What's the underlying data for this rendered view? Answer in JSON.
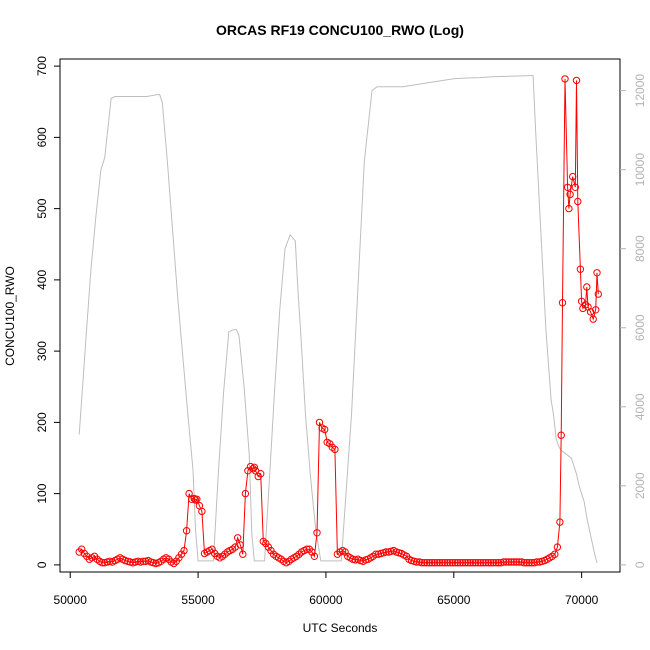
{
  "chart_data": {
    "type": "line",
    "title": "ORCAS RF19 CONCU100_RWO (Log)",
    "xlabel": "UTC Seconds",
    "ylabel": "CONCU100_RWO",
    "y2label": "",
    "xlim": [
      49600,
      71500
    ],
    "ylim": [
      -10,
      710
    ],
    "y2lim": [
      -180,
      12800
    ],
    "x_ticks": [
      50000,
      55000,
      60000,
      65000,
      70000
    ],
    "y_ticks": [
      0,
      100,
      200,
      300,
      400,
      500,
      600,
      700
    ],
    "y2_ticks": [
      0,
      2000,
      4000,
      6000,
      8000,
      10000,
      12000
    ],
    "grid": false,
    "colors": {
      "primary": "#ff0000",
      "secondary": "#bebebe",
      "axis": "#000000",
      "right_axis": "#b3b3b3"
    },
    "series": [
      {
        "axis": "left",
        "style": "line+circle-markers",
        "color": "#ff0000",
        "x": [
          50350,
          50450,
          50550,
          50650,
          50750,
          50850,
          50950,
          51050,
          51150,
          51250,
          51350,
          51450,
          51550,
          51650,
          51750,
          51850,
          51950,
          52050,
          52150,
          52250,
          52350,
          52450,
          52550,
          52650,
          52750,
          52850,
          52950,
          53050,
          53150,
          53250,
          53350,
          53450,
          53550,
          53650,
          53750,
          53850,
          53950,
          54050,
          54150,
          54250,
          54350,
          54450,
          54550,
          54650,
          54750,
          54850,
          54900,
          54950,
          55050,
          55150,
          55250,
          55350,
          55450,
          55550,
          55650,
          55750,
          55850,
          55950,
          56050,
          56150,
          56250,
          56350,
          56450,
          56550,
          56650,
          56750,
          56850,
          56950,
          57050,
          57150,
          57200,
          57250,
          57350,
          57450,
          57550,
          57650,
          57750,
          57850,
          57950,
          58050,
          58150,
          58250,
          58350,
          58450,
          58550,
          58650,
          58750,
          58850,
          58950,
          59050,
          59150,
          59250,
          59350,
          59450,
          59550,
          59650,
          59750,
          59850,
          59950,
          60050,
          60150,
          60250,
          60350,
          60450,
          60550,
          60650,
          60750,
          60850,
          60950,
          61050,
          61150,
          61250,
          61350,
          61450,
          61550,
          61650,
          61750,
          61850,
          61950,
          62050,
          62150,
          62250,
          62350,
          62450,
          62550,
          62650,
          62750,
          62850,
          62950,
          63050,
          63150,
          63250,
          63350,
          63450,
          63550,
          63650,
          63750,
          63850,
          63950,
          64050,
          64150,
          64250,
          64350,
          64450,
          64550,
          64650,
          64750,
          64850,
          64950,
          65050,
          65150,
          65250,
          65350,
          65450,
          65550,
          65650,
          65750,
          65850,
          65950,
          66050,
          66150,
          66250,
          66350,
          66450,
          66550,
          66650,
          66750,
          66850,
          66950,
          67050,
          67150,
          67250,
          67350,
          67450,
          67550,
          67650,
          67750,
          67850,
          67950,
          68050,
          68150,
          68250,
          68350,
          68450,
          68550,
          68650,
          68750,
          68850,
          68950,
          69050,
          69150,
          69200,
          69250,
          69350,
          69450,
          69500,
          69550,
          69650,
          69750,
          69800,
          69850,
          69950,
          70000,
          70050,
          70150,
          70200,
          70250,
          70350,
          70450,
          70550,
          70600,
          70650
        ],
        "y": [
          18,
          22,
          16,
          12,
          8,
          10,
          12,
          8,
          5,
          3,
          3,
          4,
          5,
          4,
          6,
          8,
          10,
          8,
          6,
          5,
          4,
          3,
          4,
          5,
          4,
          5,
          5,
          6,
          4,
          3,
          2,
          3,
          5,
          8,
          10,
          8,
          4,
          2,
          5,
          10,
          15,
          20,
          48,
          100,
          92,
          93,
          91,
          92,
          83,
          75,
          16,
          18,
          20,
          22,
          16,
          12,
          10,
          12,
          15,
          18,
          20,
          22,
          25,
          38,
          28,
          15,
          100,
          132,
          138,
          135,
          137,
          132,
          124,
          128,
          33,
          30,
          25,
          20,
          15,
          12,
          10,
          8,
          5,
          3,
          5,
          8,
          10,
          12,
          15,
          18,
          20,
          22,
          22,
          18,
          12,
          45,
          200,
          192,
          190,
          172,
          170,
          165,
          162,
          15,
          18,
          20,
          18,
          12,
          10,
          8,
          7,
          8,
          6,
          5,
          7,
          8,
          10,
          12,
          15,
          15,
          16,
          17,
          18,
          18,
          19,
          20,
          18,
          17,
          16,
          14,
          12,
          8,
          6,
          5,
          4,
          4,
          3,
          3,
          3,
          3,
          3,
          3,
          3,
          3,
          3,
          3,
          3,
          3,
          3,
          3,
          3,
          3,
          3,
          3,
          3,
          3,
          3,
          3,
          3,
          3,
          3,
          3,
          3,
          3,
          3,
          3,
          3,
          3,
          4,
          4,
          4,
          4,
          4,
          4,
          4,
          4,
          3,
          3,
          3,
          3,
          3,
          4,
          4,
          5,
          6,
          8,
          10,
          12,
          15,
          25,
          60,
          182,
          368,
          682,
          530,
          500,
          520,
          545,
          530,
          680,
          510,
          415,
          370,
          360,
          365,
          390,
          362,
          355,
          345,
          358,
          410,
          380
        ]
      },
      {
        "axis": "right",
        "style": "line",
        "color": "#bebebe",
        "x": [
          50350,
          50600,
          50800,
          51000,
          51200,
          51350,
          51500,
          51600,
          51750,
          52000,
          52500,
          53000,
          53400,
          53500,
          53600,
          53800,
          54000,
          54200,
          54400,
          54600,
          54800,
          54900,
          55000,
          55200,
          55400,
          55600,
          55800,
          56000,
          56200,
          56400,
          56500,
          56600,
          56800,
          57000,
          57100,
          57200,
          57400,
          57600,
          57800,
          58000,
          58200,
          58400,
          58600,
          58800,
          58900,
          59000,
          59200,
          59400,
          59600,
          59800,
          59900,
          60000,
          60200,
          60400,
          60600,
          61000,
          61500,
          61800,
          62000,
          62500,
          63000,
          63500,
          64000,
          64500,
          65000,
          65500,
          66000,
          66500,
          67000,
          67500,
          68000,
          68100,
          68200,
          68400,
          68600,
          68800,
          68900,
          69000,
          69100,
          69200,
          69300,
          69400,
          69600,
          69800,
          69900,
          70000,
          70100,
          70200,
          70300,
          70400,
          70500,
          70600
        ],
        "y": [
          3300,
          5600,
          7400,
          8800,
          10000,
          10300,
          11200,
          11800,
          11850,
          11850,
          11850,
          11850,
          11900,
          11900,
          11700,
          10200,
          8500,
          6800,
          5300,
          3800,
          2400,
          900,
          100,
          100,
          100,
          100,
          2400,
          4400,
          5900,
          5950,
          5950,
          5800,
          4500,
          2800,
          800,
          100,
          100,
          100,
          2300,
          4500,
          6500,
          8000,
          8350,
          8200,
          7000,
          6000,
          3800,
          2200,
          900,
          100,
          100,
          100,
          100,
          100,
          100,
          3800,
          10200,
          12000,
          12100,
          12100,
          12100,
          12150,
          12200,
          12250,
          12300,
          12320,
          12330,
          12350,
          12360,
          12370,
          12380,
          12380,
          11000,
          8500,
          6000,
          4200,
          3800,
          3200,
          3000,
          2900,
          2850,
          2800,
          2700,
          2300,
          2000,
          1800,
          1600,
          1200,
          900,
          600,
          300,
          50
        ]
      }
    ]
  }
}
